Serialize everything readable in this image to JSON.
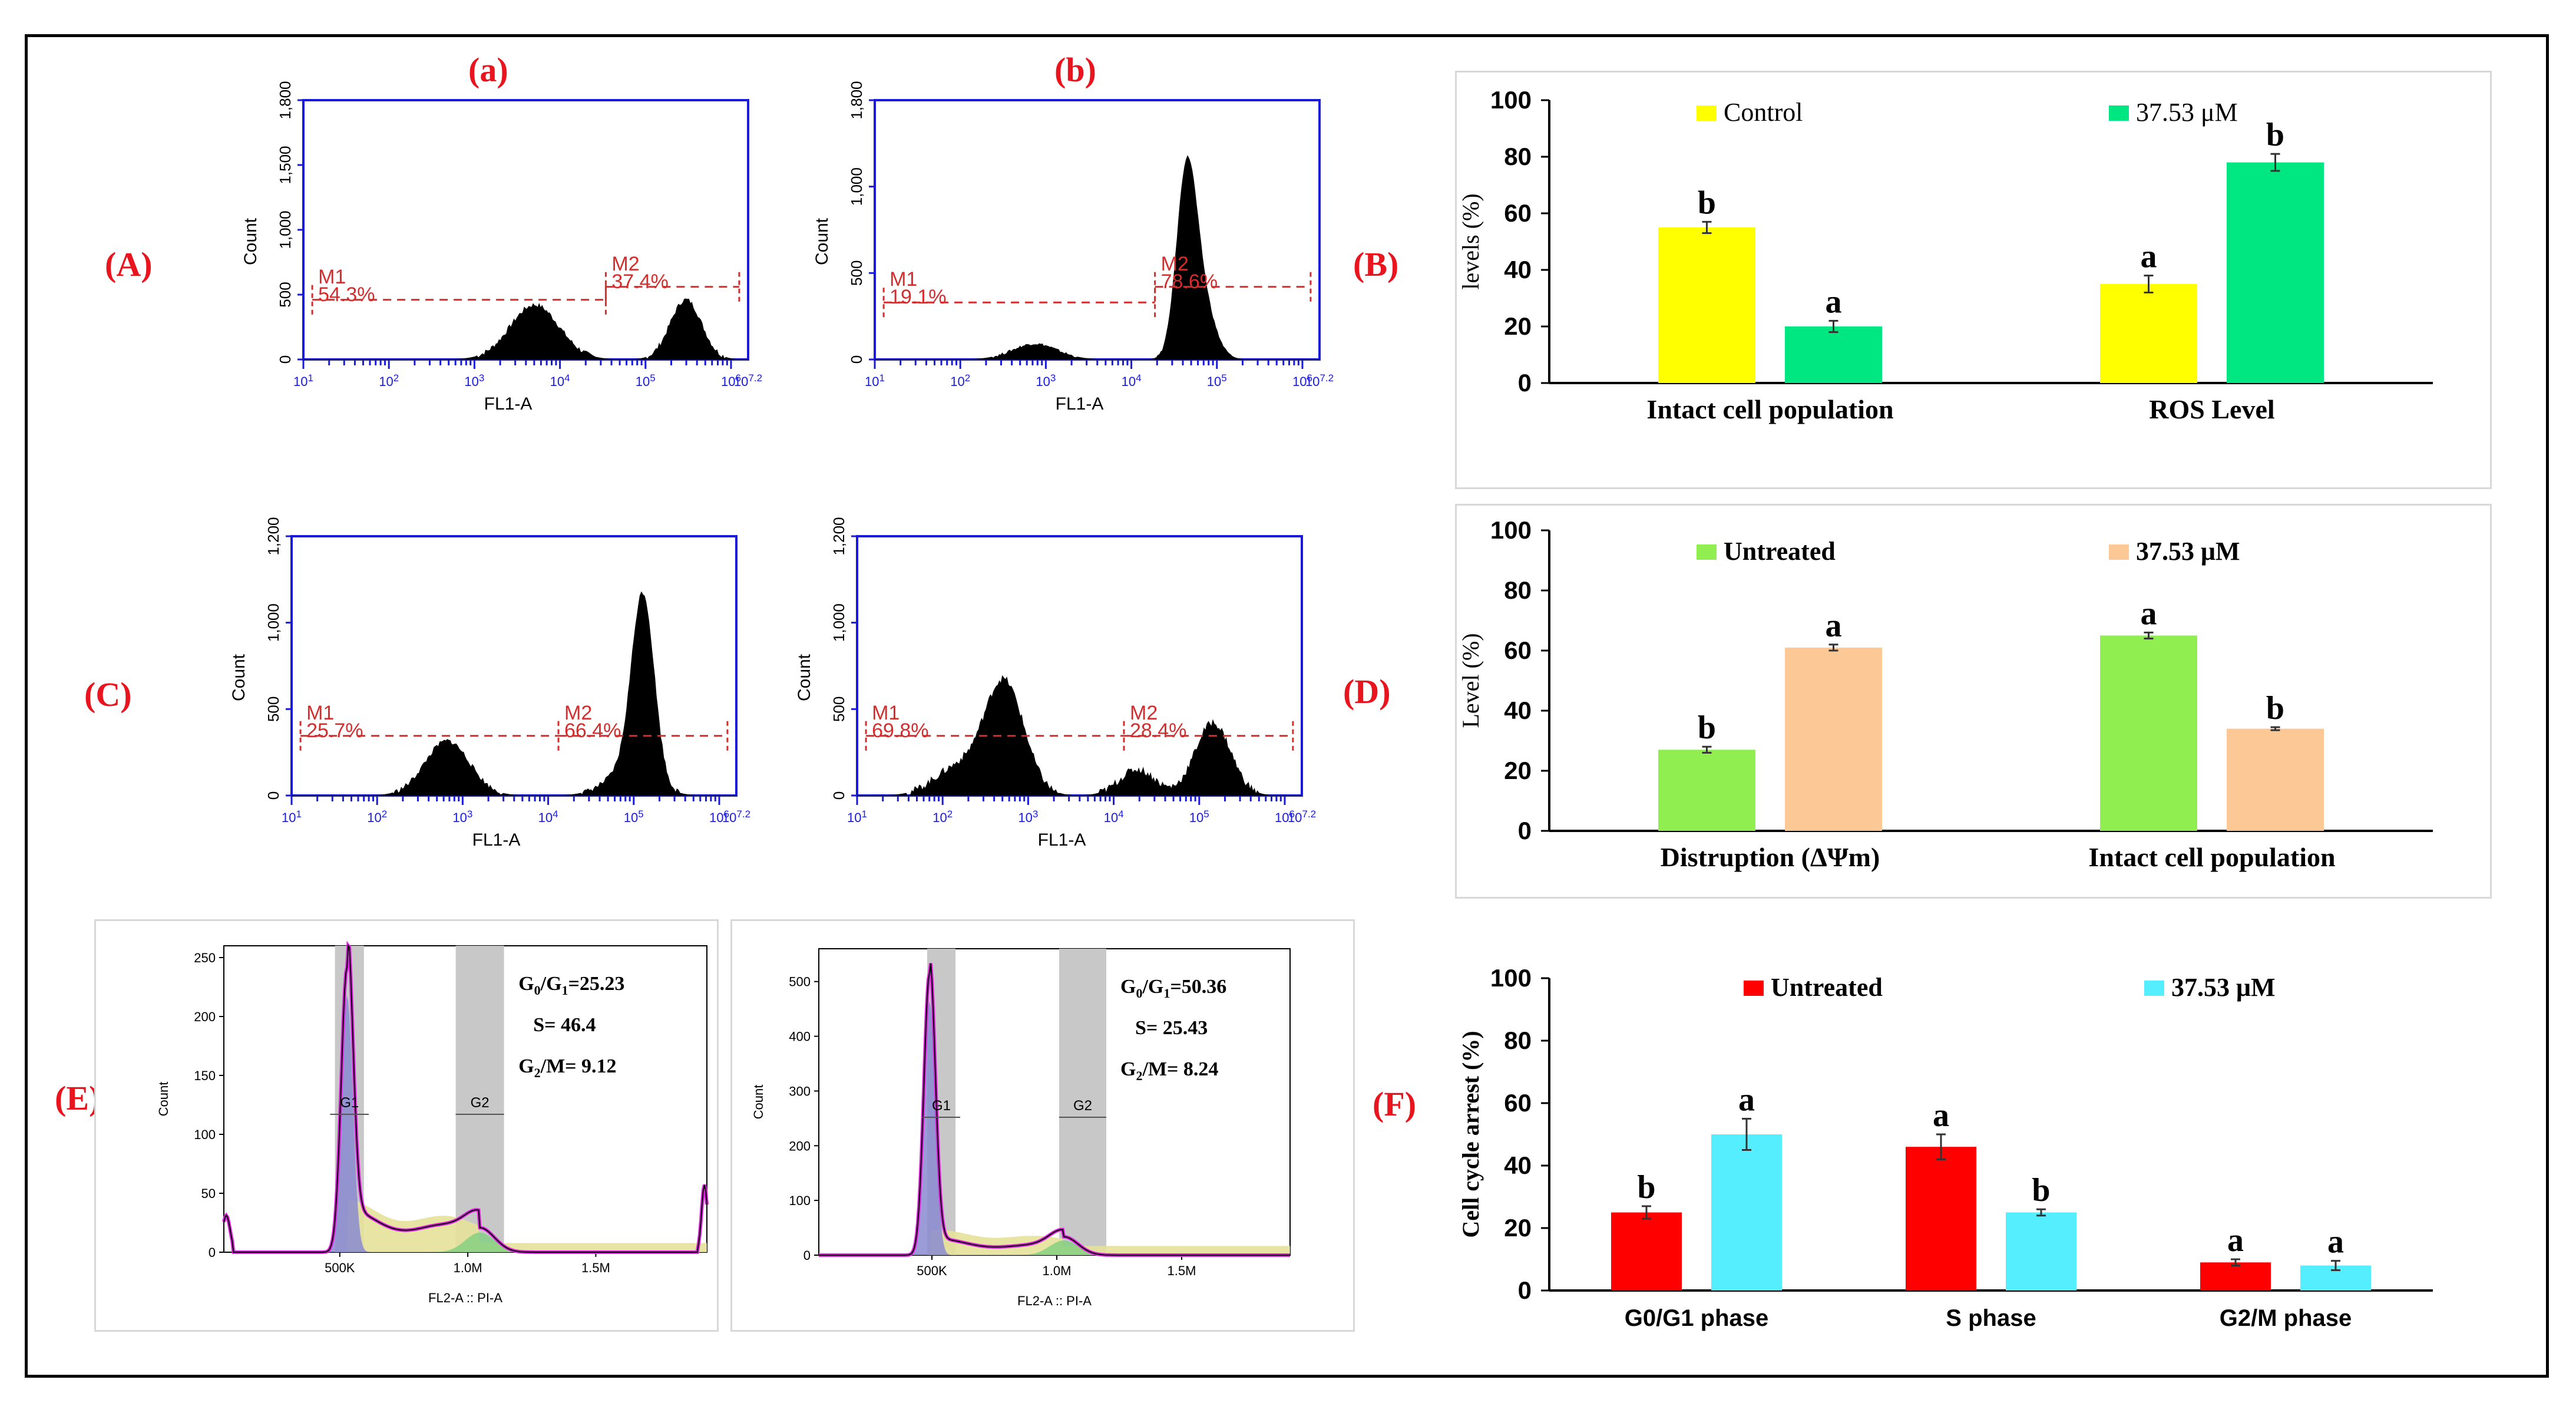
{
  "figure": {
    "panel_labels": {
      "A": "(A)",
      "B": "(B)",
      "C": "(C)",
      "D": "(D)",
      "E": "(E)",
      "F": "(F)"
    },
    "sub_labels": {
      "a": "(a)",
      "b": "(b)"
    }
  },
  "colors": {
    "red_label": "#e8141e",
    "blue_axis": "#1a1adc",
    "gate": "#d42d2d",
    "control": "#ffff00",
    "ros_treated": "#00e680",
    "untreated_d": "#90ee50",
    "treated_d": "#fcc896",
    "untreated_f": "#ff0000",
    "treated_f": "#55eeff"
  },
  "flow_histograms": [
    {
      "id": "A-a",
      "ylabel": "Count",
      "xlabel": "FL1-A",
      "yticks": [
        "0",
        "500",
        "1,000",
        "1,500",
        "1,800"
      ],
      "xticks": [
        "10^1",
        "10^2",
        "10^3",
        "10^4",
        "10^5",
        "10^6",
        "10^7.2"
      ],
      "gates": [
        {
          "name": "M1",
          "percent": "54.3%"
        },
        {
          "name": "M2",
          "percent": "37.4%"
        }
      ]
    },
    {
      "id": "A-b",
      "ylabel": "Count",
      "xlabel": "FL1-A",
      "yticks": [
        "0",
        "500",
        "1,000",
        "1,800"
      ],
      "xticks": [
        "10^1",
        "10^2",
        "10^3",
        "10^4",
        "10^5",
        "10^6",
        "10^7.2"
      ],
      "gates": [
        {
          "name": "M1",
          "percent": "19.1%"
        },
        {
          "name": "M2",
          "percent": "78.6%"
        }
      ]
    },
    {
      "id": "C-a",
      "ylabel": "Count",
      "xlabel": "FL1-A",
      "yticks": [
        "0",
        "500",
        "1,000",
        "1,200"
      ],
      "xticks": [
        "10^1",
        "10^2",
        "10^3",
        "10^4",
        "10^5",
        "10^6",
        "10^7.2"
      ],
      "gates": [
        {
          "name": "M1",
          "percent": "25.7%"
        },
        {
          "name": "M2",
          "percent": "66.4%"
        }
      ]
    },
    {
      "id": "C-b",
      "ylabel": "Count",
      "xlabel": "FL1-A",
      "yticks": [
        "0",
        "500",
        "1,000",
        "1,200"
      ],
      "xticks": [
        "10^1",
        "10^2",
        "10^3",
        "10^4",
        "10^5",
        "10^6",
        "10^7.2"
      ],
      "gates": [
        {
          "name": "M1",
          "percent": "69.8%"
        },
        {
          "name": "M2",
          "percent": "28.4%"
        }
      ]
    }
  ],
  "cell_cycle": [
    {
      "id": "E-a",
      "ylabel": "Count",
      "xlabel": "FL2-A :: PI-A",
      "yticks": [
        "0",
        "50",
        "100",
        "150",
        "200",
        "250"
      ],
      "xticks": [
        "500K",
        "1.0M",
        "1.5M"
      ],
      "g1_label": "G1",
      "g2_label": "G2",
      "stats": {
        "g0g1_prefix": "G",
        "g0g1_sub0": "0",
        "g0g1_mid": "/G",
        "g0g1_sub1": "1",
        "g0g1_value": "=25.23",
        "s_line": "S= 46.4",
        "g2m_prefix": "G",
        "g2m_sub": "2",
        "g2m_value": "/M= 9.12"
      }
    },
    {
      "id": "E-b",
      "ylabel": "Count",
      "xlabel": "FL2-A :: PI-A",
      "yticks": [
        "0",
        "100",
        "200",
        "300",
        "400",
        "500"
      ],
      "xticks": [
        "500K",
        "1.0M",
        "1.5M"
      ],
      "g1_label": "G1",
      "g2_label": "G2",
      "stats": {
        "g0g1_prefix": "G",
        "g0g1_sub0": "0",
        "g0g1_mid": "/G",
        "g0g1_sub1": "1",
        "g0g1_value": "=50.36",
        "s_line": "S= 25.43",
        "g2m_prefix": "G",
        "g2m_sub": "2",
        "g2m_value": "/M= 8.24"
      }
    }
  ],
  "chart_data": [
    {
      "id": "B",
      "type": "bar",
      "categories": [
        "Intact cell population",
        "ROS Level"
      ],
      "ylabel": "levels (%)",
      "ylim": [
        0,
        100
      ],
      "yticks": [
        0,
        20,
        40,
        60,
        80,
        100
      ],
      "legend_placement": "top",
      "series": [
        {
          "name": "Control",
          "values": [
            55,
            35
          ],
          "errors": [
            2,
            3
          ],
          "letters": [
            "b",
            "a"
          ]
        },
        {
          "name": "37.53 μM",
          "values": [
            20,
            78
          ],
          "errors": [
            2,
            3
          ],
          "letters": [
            "a",
            "b"
          ]
        }
      ]
    },
    {
      "id": "D",
      "type": "bar",
      "categories": [
        "Distruption (ΔΨm)",
        "Intact cell population"
      ],
      "ylabel": "Level (%)",
      "ylim": [
        0,
        100
      ],
      "yticks": [
        0,
        20,
        40,
        60,
        80,
        100
      ],
      "legend_placement": "top",
      "series": [
        {
          "name": "Untreated",
          "values": [
            27,
            65
          ],
          "errors": [
            1,
            1
          ],
          "letters": [
            "b",
            "a"
          ]
        },
        {
          "name": "37.53 μM",
          "values": [
            61,
            34
          ],
          "errors": [
            1,
            0.5
          ],
          "letters": [
            "a",
            "b"
          ]
        }
      ]
    },
    {
      "id": "F",
      "type": "bar",
      "categories": [
        "G0/G1 phase",
        "S phase",
        "G2/M phase"
      ],
      "ylabel": "Cell cycle arrest (%)",
      "ylim": [
        0,
        100
      ],
      "yticks": [
        0,
        20,
        40,
        60,
        80,
        100
      ],
      "legend_placement": "top",
      "series": [
        {
          "name": "Untreated",
          "values": [
            25,
            46,
            9
          ],
          "errors": [
            2,
            4,
            1
          ],
          "letters": [
            "b",
            "a",
            "a"
          ]
        },
        {
          "name": "37.53  μM",
          "values": [
            50,
            25,
            8
          ],
          "errors": [
            5,
            1,
            1.5
          ],
          "letters": [
            "a",
            "b",
            "a"
          ]
        }
      ]
    }
  ]
}
